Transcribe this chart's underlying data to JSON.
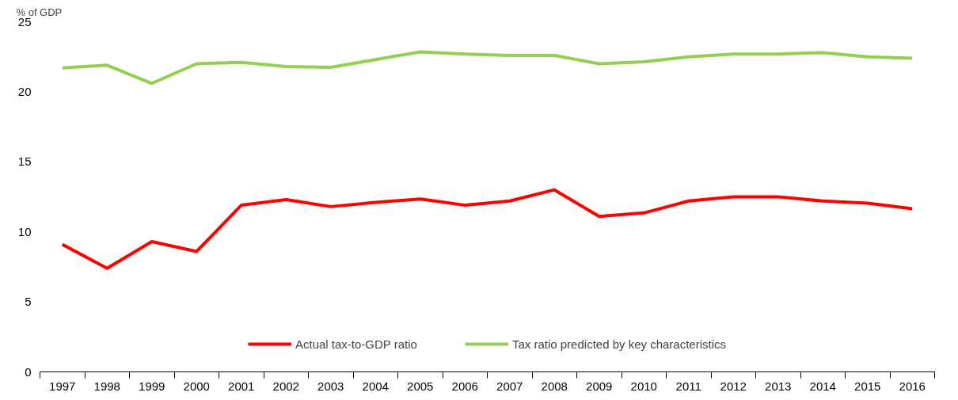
{
  "chart_data": {
    "type": "line",
    "ylabel": "% of GDP",
    "categories": [
      "1997",
      "1998",
      "1999",
      "2000",
      "2001",
      "2002",
      "2003",
      "2004",
      "2005",
      "2006",
      "2007",
      "2008",
      "2009",
      "2010",
      "2011",
      "2012",
      "2013",
      "2014",
      "2015",
      "2016"
    ],
    "series": [
      {
        "name": "Actual tax-to-GDP ratio",
        "color": "#ff0000",
        "values": [
          9.1,
          7.4,
          9.3,
          8.6,
          11.9,
          12.3,
          11.8,
          12.1,
          12.35,
          11.9,
          12.2,
          13.0,
          11.1,
          11.35,
          12.2,
          12.5,
          12.5,
          12.2,
          12.05,
          11.65
        ]
      },
      {
        "name": "Tax ratio predicted by key characteristics",
        "color": "#92d050",
        "values": [
          21.7,
          21.9,
          20.6,
          22.0,
          22.1,
          21.8,
          21.75,
          22.3,
          22.85,
          22.7,
          22.6,
          22.6,
          22.0,
          22.15,
          22.5,
          22.7,
          22.7,
          22.8,
          22.5,
          22.4
        ]
      }
    ],
    "ylim": [
      0,
      25
    ],
    "yticks": [
      0,
      5,
      10,
      15,
      20,
      25
    ],
    "grid": false,
    "legend": "bottom",
    "marker": "none",
    "line_style": "solid"
  }
}
